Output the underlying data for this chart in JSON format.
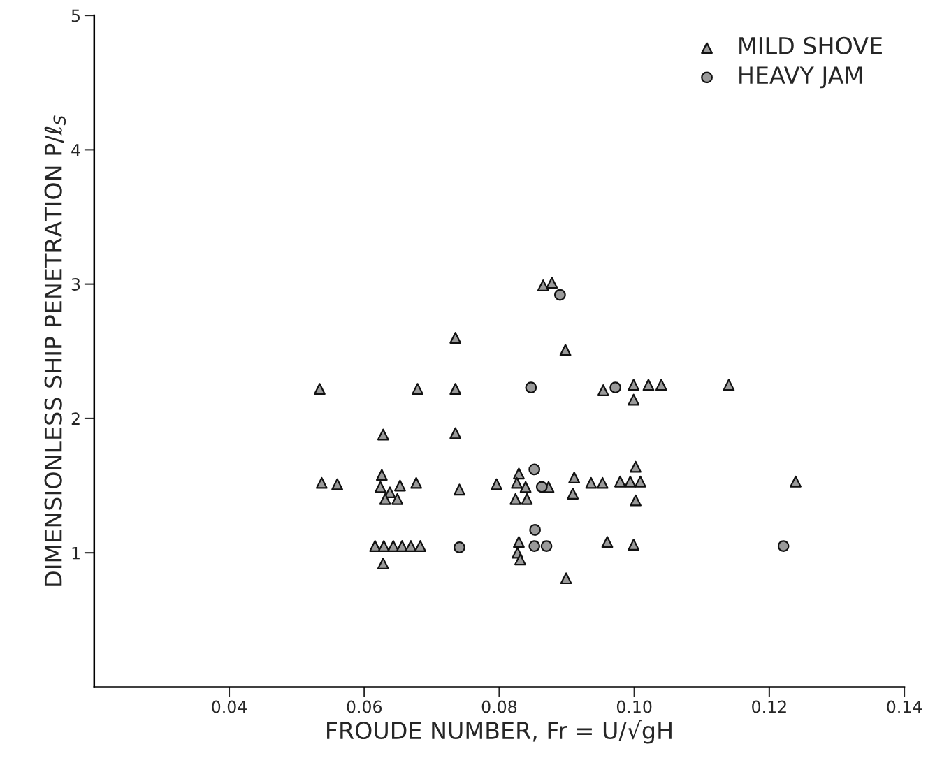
{
  "chart_data": {
    "type": "scatter",
    "xlabel": "FROUDE NUMBER, Fr = U/√gH",
    "ylabel": "DIMENSIONLESS SHIP PENETRATION P/ℓ$_{S}$",
    "xlim": [
      0.02,
      0.14
    ],
    "ylim": [
      0,
      5
    ],
    "xticks": [
      0.04,
      0.06,
      0.08,
      {
        "value": 0.1,
        "label": "0.10"
      },
      0.12,
      0.14
    ],
    "yticks": [
      1,
      2,
      3,
      4,
      5
    ],
    "grid": false,
    "legend": "top right",
    "series": [
      {
        "name": "MILD SHOVE",
        "color": "#9a9a9a",
        "marker": "triangle",
        "x": [
          0.0534,
          0.0537,
          0.056,
          0.0628,
          0.0626,
          0.0624,
          0.0638,
          0.0631,
          0.0649,
          0.0653,
          0.0677,
          0.0679,
          0.0616,
          0.0629,
          0.0643,
          0.0656,
          0.0669,
          0.0683,
          0.0628,
          0.0735,
          0.0735,
          0.0735,
          0.0741,
          0.0796,
          0.0829,
          0.0826,
          0.0839,
          0.0824,
          0.0841,
          0.0865,
          0.0878,
          0.0898,
          0.0873,
          0.0911,
          0.0909,
          0.0936,
          0.0953,
          0.0979,
          0.0994,
          0.1009,
          0.1002,
          0.1002,
          0.0954,
          0.0999,
          0.0999,
          0.1021,
          0.104,
          0.114,
          0.1239,
          0.096,
          0.0999,
          0.0899,
          0.0829,
          0.0827,
          0.0831
        ],
        "values": [
          2.22,
          1.52,
          1.51,
          1.88,
          1.58,
          1.49,
          1.45,
          1.4,
          1.4,
          1.5,
          1.52,
          2.22,
          1.05,
          1.05,
          1.05,
          1.05,
          1.05,
          1.05,
          0.92,
          2.6,
          2.22,
          1.89,
          1.47,
          1.51,
          1.59,
          1.52,
          1.49,
          1.4,
          1.4,
          2.99,
          3.01,
          2.51,
          1.49,
          1.56,
          1.44,
          1.52,
          1.52,
          1.53,
          1.53,
          1.53,
          1.64,
          1.39,
          2.21,
          2.25,
          2.14,
          2.25,
          2.25,
          2.25,
          1.53,
          1.08,
          1.06,
          0.81,
          1.08,
          1.0,
          0.95
        ]
      },
      {
        "name": "HEAVY JAM",
        "color": "#9a9a9a",
        "marker": "circle",
        "x": [
          0.0847,
          0.0972,
          0.089,
          0.0852,
          0.0863,
          0.0853,
          0.0852,
          0.087,
          0.1221,
          0.0741
        ],
        "values": [
          2.23,
          2.23,
          2.92,
          1.62,
          1.49,
          1.17,
          1.05,
          1.05,
          1.05,
          1.04
        ]
      }
    ]
  }
}
